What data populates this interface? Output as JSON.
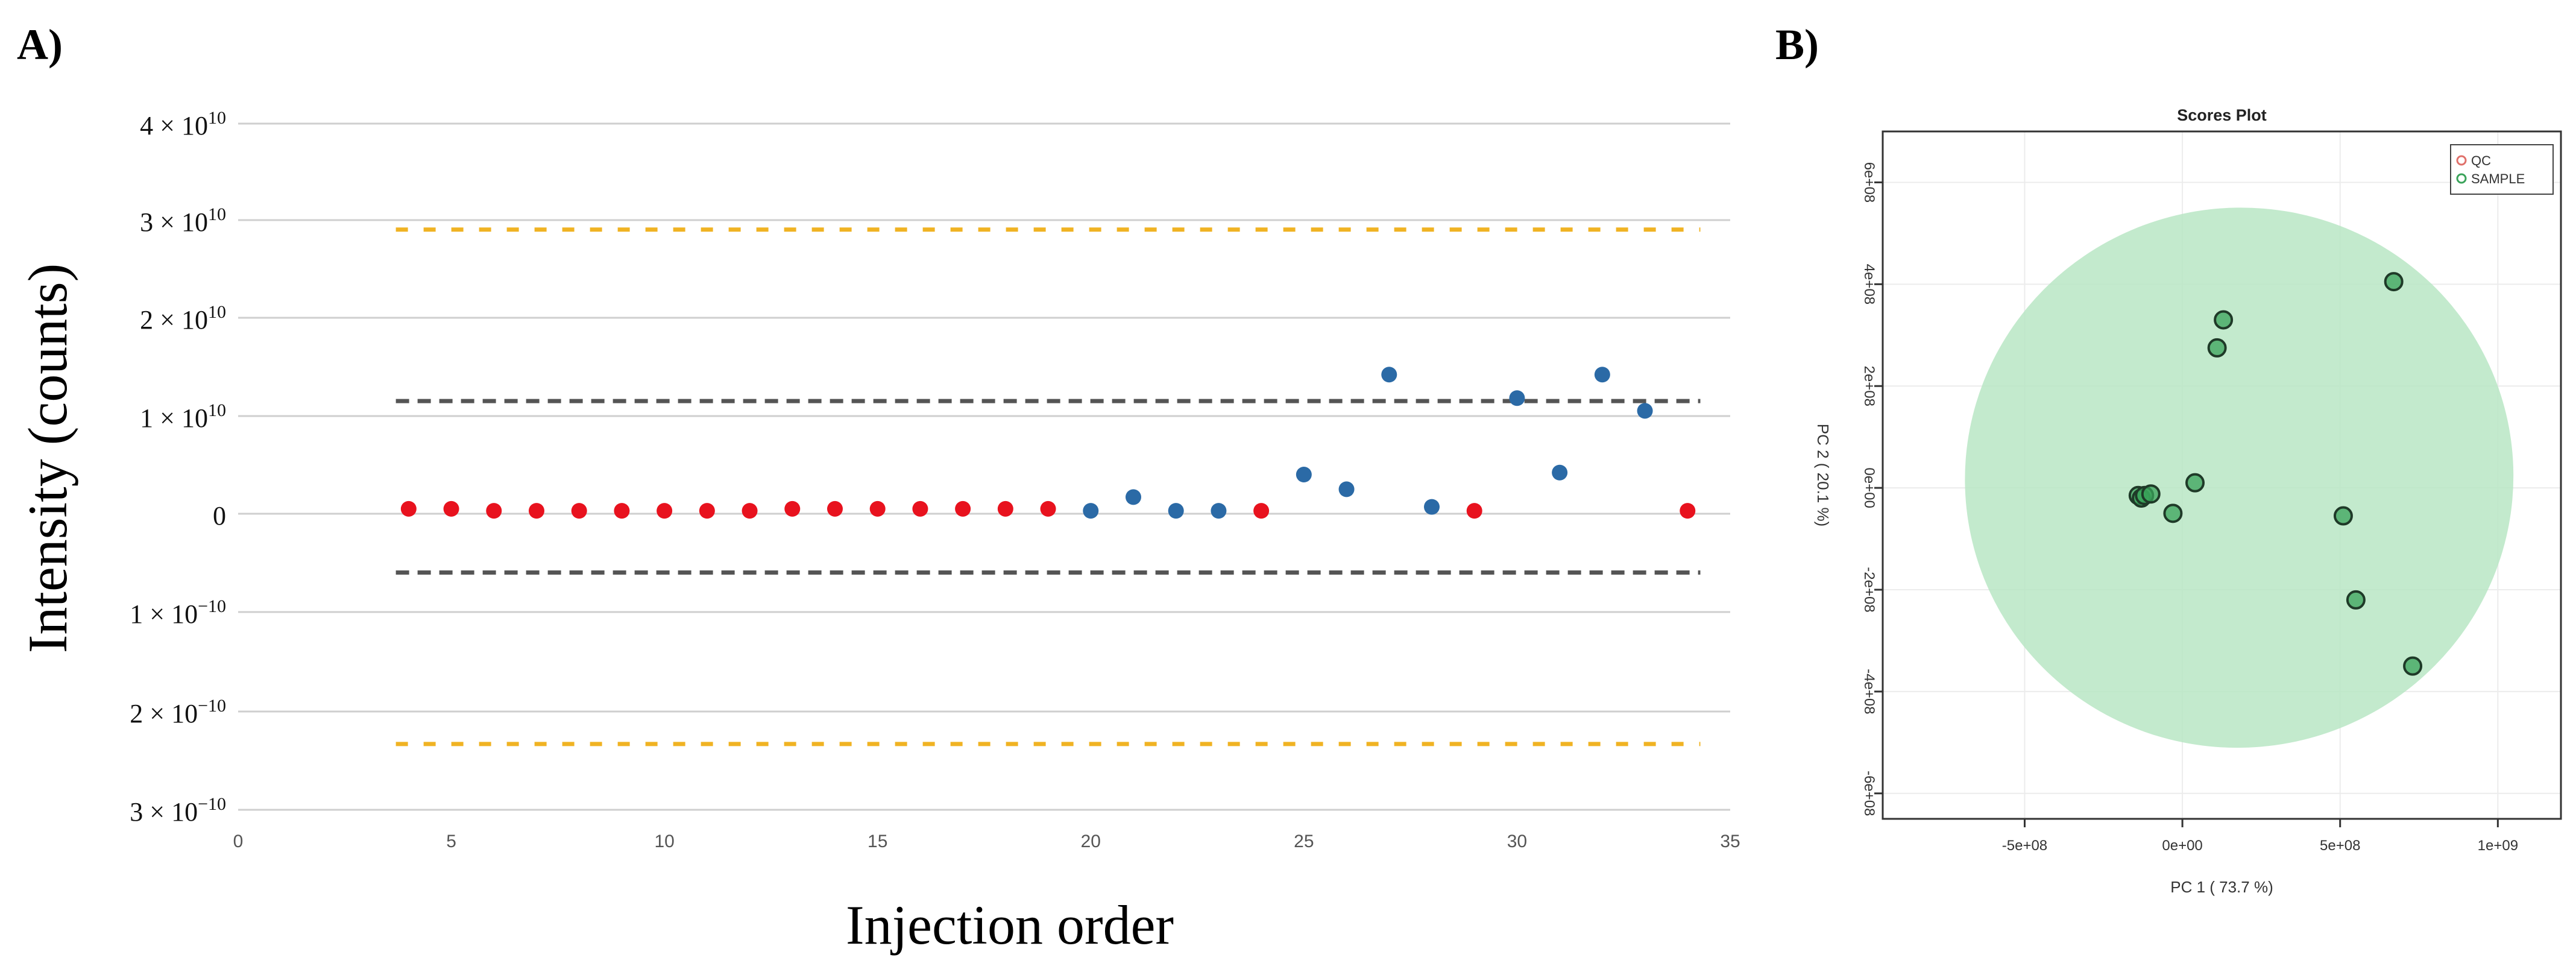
{
  "panels": {
    "a_label": "A)",
    "b_label": "B)"
  },
  "chart_data": [
    {
      "type": "scatter",
      "xlabel": "Injection order",
      "ylabel": "Intensity (counts)",
      "xlim": [
        0,
        35
      ],
      "xticks": [
        "0",
        "5",
        "10",
        "15",
        "20",
        "25",
        "30",
        "35"
      ],
      "yticks": [
        {
          "base": "4 × 10",
          "exp": "10"
        },
        {
          "base": "3 × 10",
          "exp": "10"
        },
        {
          "base": "2 × 10",
          "exp": "10"
        },
        {
          "base": "1 × 10",
          "exp": "10"
        },
        {
          "base": "0",
          "exp": ""
        },
        {
          "base": "1 × 10",
          "exp": "−10"
        },
        {
          "base": "2 × 10",
          "exp": "−10"
        },
        {
          "base": "3 × 10",
          "exp": "−10"
        }
      ],
      "grid": true,
      "reference_lines": [
        {
          "style": "dashed",
          "color": "#f0b323",
          "y": 2.9
        },
        {
          "style": "dashed",
          "color": "#555555",
          "y": 1.15
        },
        {
          "style": "dashed",
          "color": "#555555",
          "y": -0.6
        },
        {
          "style": "dashed",
          "color": "#f0b323",
          "y": -2.35
        }
      ],
      "series": [
        {
          "color": "#e8121e",
          "x": [
            4,
            5,
            6,
            7,
            8,
            9,
            10,
            11,
            12,
            13,
            14,
            15,
            16,
            17,
            18,
            19,
            24,
            29,
            34
          ],
          "y": [
            0.05,
            0.05,
            0.03,
            0.03,
            0.03,
            0.03,
            0.03,
            0.03,
            0.03,
            0.05,
            0.05,
            0.05,
            0.05,
            0.05,
            0.05,
            0.05,
            0.03,
            0.03,
            0.03
          ]
        },
        {
          "color": "#2b6aa6",
          "x": [
            20,
            21,
            22,
            23,
            25,
            26,
            27,
            28,
            30,
            31,
            32,
            33
          ],
          "y": [
            0.03,
            0.17,
            0.03,
            0.03,
            0.4,
            0.25,
            1.42,
            0.07,
            1.18,
            0.42,
            1.42,
            1.05
          ]
        }
      ]
    },
    {
      "type": "scatter",
      "title": "Scores Plot",
      "xlabel": "PC 1 ( 73.7 %)",
      "ylabel": "PC 2 ( 20.1 %)",
      "xlim": [
        -950000000.0,
        1200000000.0
      ],
      "ylim": [
        -650000000.0,
        700000000.0
      ],
      "xticks": [
        {
          "value": -500000000.0,
          "label": "-5e+08"
        },
        {
          "value": 0,
          "label": "0e+00"
        },
        {
          "value": 500000000.0,
          "label": "5e+08"
        },
        {
          "value": 1000000000.0,
          "label": "1e+09"
        }
      ],
      "yticks": [
        {
          "value": 600000000.0,
          "label": "6e+08"
        },
        {
          "value": 400000000.0,
          "label": "4e+08"
        },
        {
          "value": 200000000.0,
          "label": "2e+08"
        },
        {
          "value": 0,
          "label": "0e+00"
        },
        {
          "value": -200000000.0,
          "label": "-2e+08"
        },
        {
          "value": -400000000.0,
          "label": "-4e+08"
        },
        {
          "value": -600000000.0,
          "label": "-6e+08"
        }
      ],
      "grid": true,
      "legend": {
        "position": "top-right",
        "entries": [
          {
            "name": "QC",
            "color": "#e0706a"
          },
          {
            "name": "SAMPLE",
            "color": "#3aa35a"
          }
        ]
      },
      "ellipse": {
        "color": "#b8e6c4",
        "cx": 180000000.0,
        "cy": 20000000.0,
        "rx": 870000000.0,
        "ry": 530000000.0,
        "rotation_deg": -12
      },
      "series": [
        {
          "name": "SAMPLE",
          "color": "#3aa35a",
          "x": [
            670000000.0,
            130000000.0,
            110000000.0,
            40000000.0,
            -140000000.0,
            -130000000.0,
            -120000000.0,
            -100000000.0,
            -30000000.0,
            510000000.0,
            550000000.0,
            730000000.0
          ],
          "y": [
            405000000.0,
            330000000.0,
            275000000.0,
            10000000.0,
            -15000000.0,
            -20000000.0,
            -15000000.0,
            -12000000.0,
            -50000000.0,
            -55000000.0,
            -220000000.0,
            -350000000.0
          ]
        }
      ]
    }
  ]
}
